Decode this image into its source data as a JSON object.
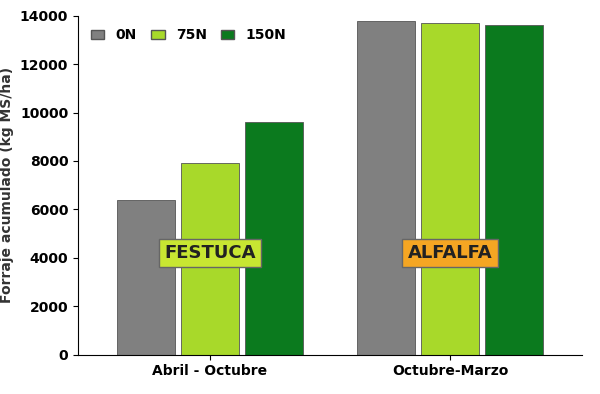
{
  "chart_data": {
    "type": "bar",
    "y_label": "Forraje acumulado (kg MS/ha)",
    "categories": [
      "Abril - Octubre",
      "Octubre-Marzo"
    ],
    "series": [
      {
        "name": "0N",
        "color": "#808080",
        "values": [
          6400,
          13800
        ]
      },
      {
        "name": "75N",
        "color": "#a8d92a",
        "values": [
          7900,
          13700
        ]
      },
      {
        "name": "150N",
        "color": "#0b7a1e",
        "values": [
          9600,
          13600
        ]
      }
    ],
    "annotations": [
      "FESTUCA",
      "ALFALFA"
    ],
    "ylim": [
      0,
      14000
    ],
    "yticks": [
      0,
      2000,
      4000,
      6000,
      8000,
      10000,
      12000,
      14000
    ],
    "legend": "upper left",
    "grid": false
  }
}
